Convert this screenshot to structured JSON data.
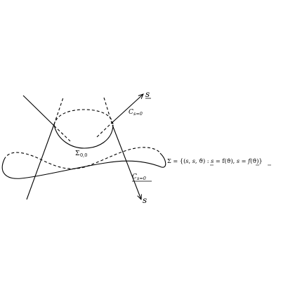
{
  "diagram": {
    "labels": {
      "axis_s_under": "s",
      "axis_s": "s",
      "cone_top": "C_{s=0}",
      "cone_top_main": "C",
      "cone_top_sub": "s=0",
      "cone_bottom_main": "C",
      "cone_bottom_sub": "s=0",
      "sigma_main": "Σ",
      "sigma_sub": "0,0",
      "formula": "Σ = {(s, s, ϑ) : s = f(ϑ), s = f(ϑ)}",
      "formula_parts": {
        "lhs": "Σ = {(",
        "s1": "s",
        "comma1": ", ",
        "s2": "s",
        "comma2": ", ϑ) : ",
        "s3": "s",
        "eq1": " = f(ϑ), ",
        "s4": "s",
        "eq2": " = ",
        "f2": "f",
        "tail": "(ϑ)}"
      }
    }
  }
}
